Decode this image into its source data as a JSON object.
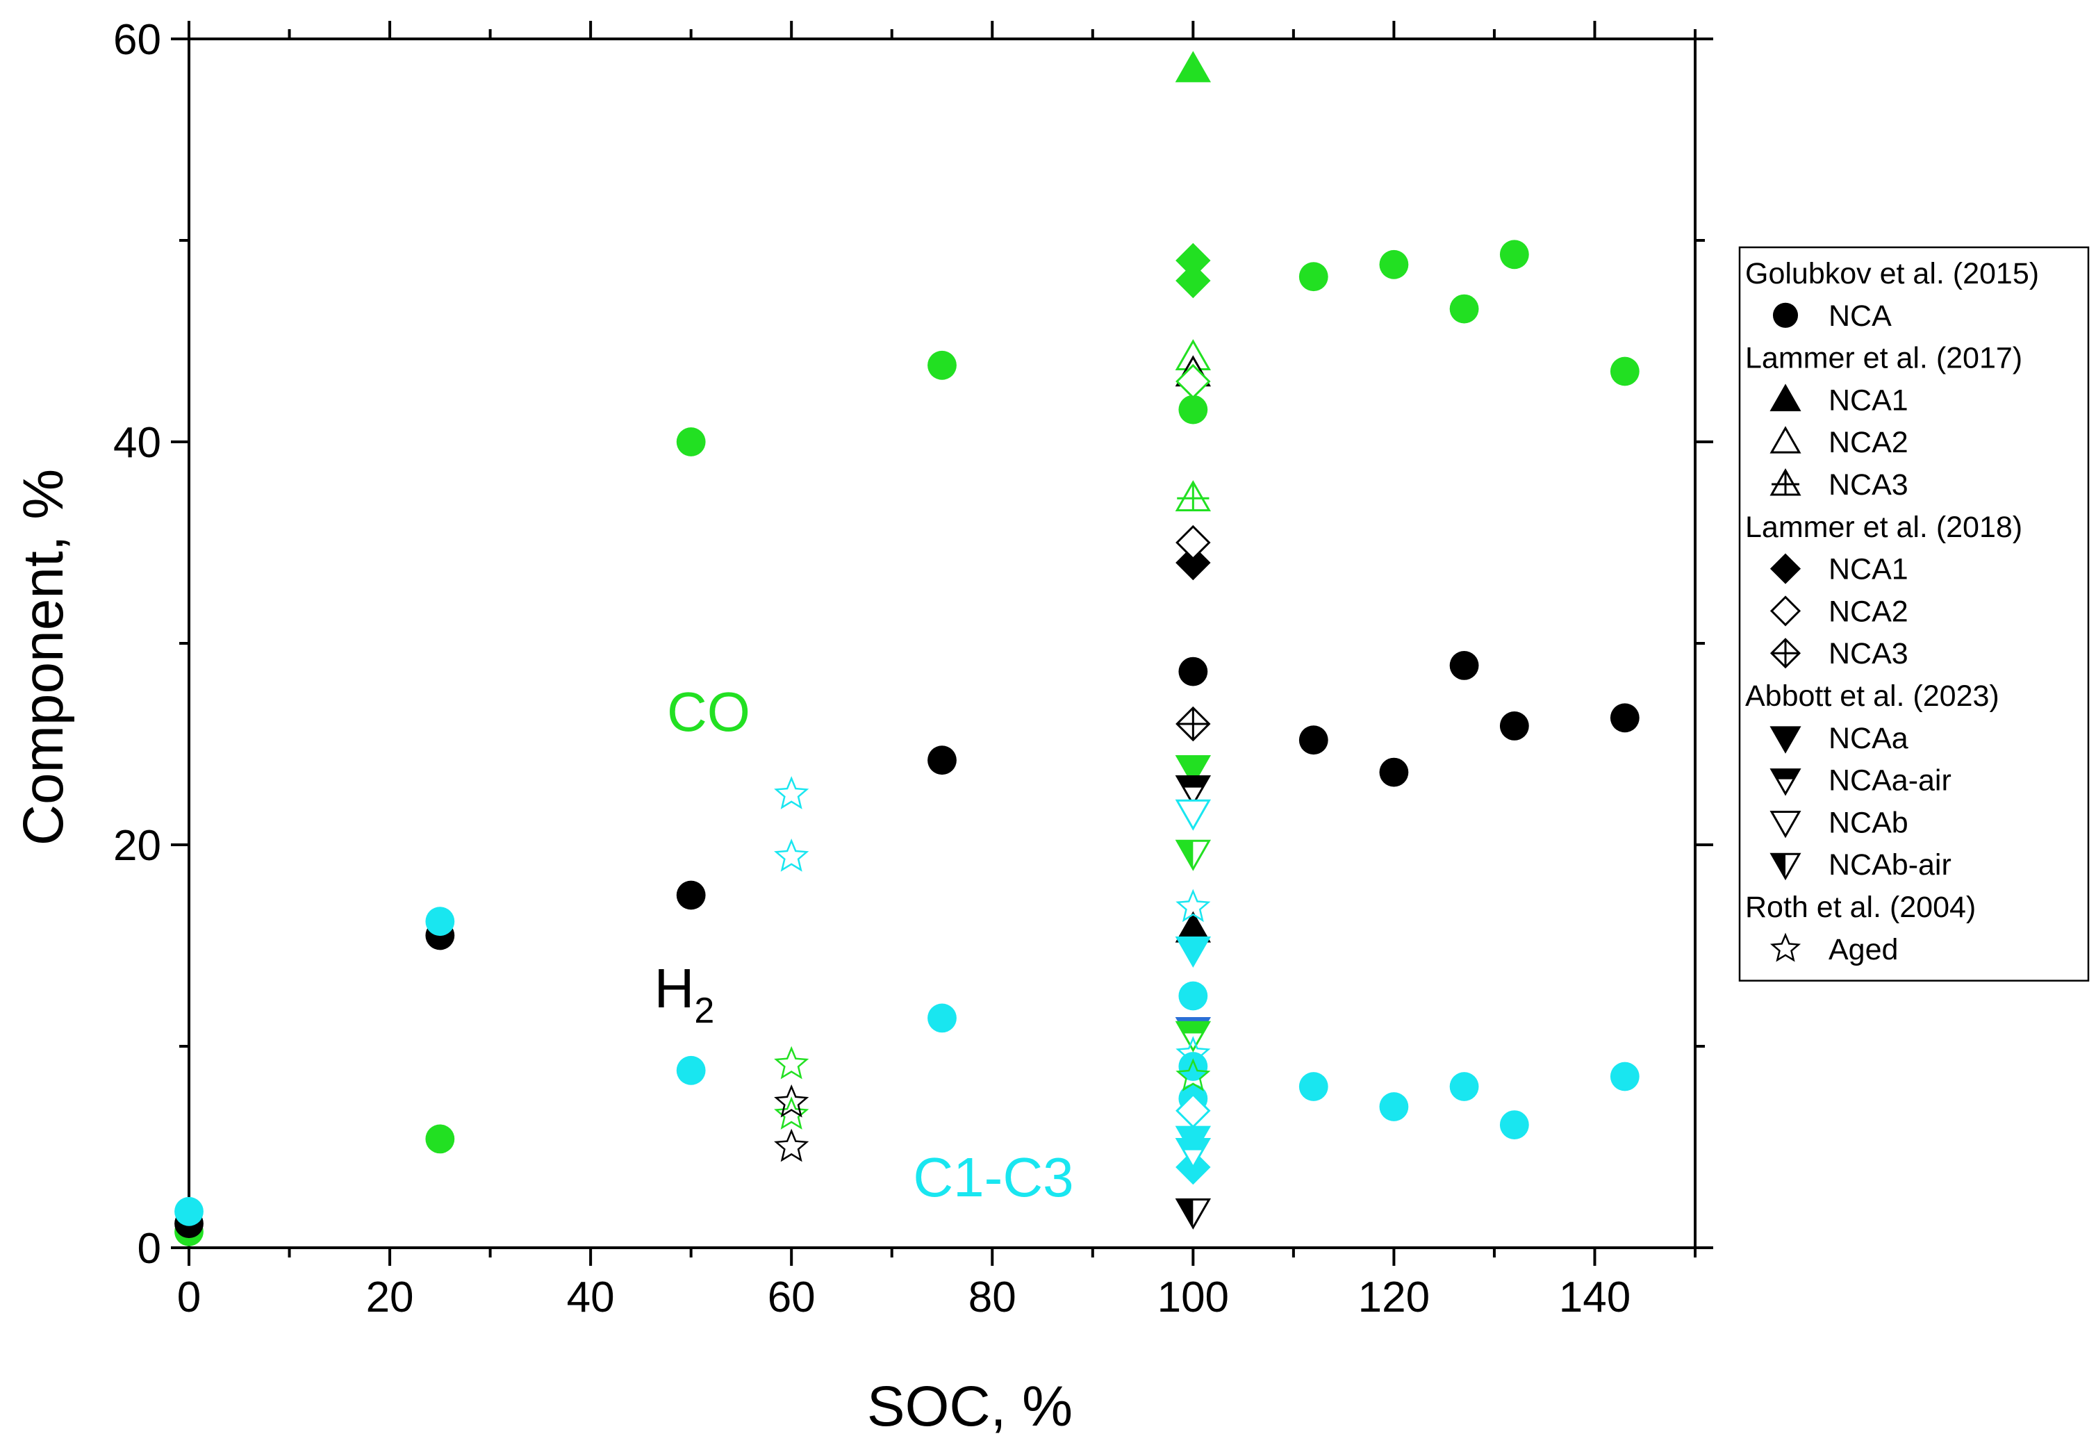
{
  "chart_data": {
    "type": "scatter",
    "title": "",
    "xlabel": "SOC, %",
    "ylabel": "Component, %",
    "xlim": [
      0,
      150
    ],
    "ylim": [
      0,
      60
    ],
    "xticks": [
      0,
      20,
      40,
      60,
      80,
      100,
      120,
      140
    ],
    "yticks": [
      0,
      20,
      40,
      60
    ],
    "colors": {
      "co": "#22e022",
      "h2": "#000000",
      "c1c3": "#19e6f0",
      "blue": "#2a6fd6"
    },
    "annotations": [
      {
        "id": "co",
        "text": "CO",
        "color": "#22e022"
      },
      {
        "id": "h2",
        "text": "H",
        "sub": "2",
        "color": "#000000"
      },
      {
        "id": "c1c3",
        "text": "C1-C3",
        "color": "#19e6f0"
      }
    ],
    "legend": {
      "placement": "right",
      "groups": [
        {
          "title": "Golubkov et al. (2015)",
          "entries": [
            {
              "label": "NCA",
              "marker": "circle"
            }
          ]
        },
        {
          "title": "Lammer et al. (2017)",
          "entries": [
            {
              "label": "NCA1",
              "marker": "tri-up-filled"
            },
            {
              "label": "NCA2",
              "marker": "tri-up-open"
            },
            {
              "label": "NCA3",
              "marker": "tri-up-cross"
            }
          ]
        },
        {
          "title": "Lammer et al. (2018)",
          "entries": [
            {
              "label": "NCA1",
              "marker": "diamond-filled"
            },
            {
              "label": "NCA2",
              "marker": "diamond-open"
            },
            {
              "label": "NCA3",
              "marker": "diamond-cross"
            }
          ]
        },
        {
          "title": "Abbott et al. (2023)",
          "entries": [
            {
              "label": "NCAa",
              "marker": "tri-down-filled"
            },
            {
              "label": "NCAa-air",
              "marker": "tri-down-half"
            },
            {
              "label": "NCAb",
              "marker": "tri-down-open"
            },
            {
              "label": "NCAb-air",
              "marker": "tri-down-half-v"
            }
          ]
        },
        {
          "title": "Roth et al. (2004)",
          "entries": [
            {
              "label": "Aged",
              "marker": "star-open"
            }
          ]
        }
      ]
    },
    "series": [
      {
        "name": "Golubkov NCA - CO",
        "marker": "circle",
        "color": "#22e022",
        "x": [
          0,
          25,
          50,
          75,
          100,
          112,
          120,
          127,
          132,
          143
        ],
        "y": [
          0.8,
          5.4,
          40,
          43.8,
          41.6,
          48.2,
          48.8,
          46.6,
          49.3,
          43.5
        ]
      },
      {
        "name": "Golubkov NCA - H2",
        "marker": "circle",
        "color": "#000000",
        "x": [
          0,
          25,
          50,
          75,
          100,
          112,
          120,
          127,
          132,
          143
        ],
        "y": [
          1.2,
          15.5,
          17.5,
          24.2,
          28.6,
          25.2,
          23.6,
          28.9,
          25.9,
          26.3
        ]
      },
      {
        "name": "Golubkov NCA - C1-C3",
        "marker": "circle",
        "color": "#19e6f0",
        "x": [
          0,
          25,
          50,
          75,
          100,
          112,
          120,
          127,
          132,
          143
        ],
        "y": [
          1.8,
          16.2,
          8.8,
          11.4,
          12.5,
          8.0,
          7.0,
          8.0,
          6.1,
          8.5
        ]
      },
      {
        "name": "Golubkov NCA - additional at 100",
        "marker": "circle",
        "color": "#19e6f0",
        "x": [
          100,
          100
        ],
        "y": [
          9.0,
          7.4
        ]
      },
      {
        "name": "Lammer 2017 NCA1 - CO",
        "marker": "tri-up-filled",
        "color": "#22e022",
        "x": [
          100
        ],
        "y": [
          58.5
        ]
      },
      {
        "name": "Lammer 2017 NCA1 - H2",
        "marker": "tri-up-filled",
        "color": "#000000",
        "x": [
          100
        ],
        "y": [
          15.8
        ]
      },
      {
        "name": "Lammer 2017 NCA2 - CO",
        "marker": "tri-up-open",
        "color": "#22e022",
        "x": [
          100
        ],
        "y": [
          44.2
        ]
      },
      {
        "name": "Lammer 2017 NCA3 - CO",
        "marker": "tri-up-cross",
        "color": "#22e022",
        "x": [
          100
        ],
        "y": [
          37.2
        ]
      },
      {
        "name": "Lammer 2017 NCA2 - H2",
        "marker": "tri-up-open",
        "color": "#000000",
        "x": [
          100
        ],
        "y": [
          43.4
        ]
      },
      {
        "name": "Lammer 2018 NCA1 - CO",
        "marker": "diamond-filled",
        "color": "#22e022",
        "x": [
          100,
          100
        ],
        "y": [
          49.0,
          48.0
        ]
      },
      {
        "name": "Lammer 2018 NCA1 - H2",
        "marker": "diamond-filled",
        "color": "#000000",
        "x": [
          100
        ],
        "y": [
          34.0
        ]
      },
      {
        "name": "Lammer 2018 NCA2 - CO",
        "marker": "diamond-open",
        "color": "#22e022",
        "x": [
          100
        ],
        "y": [
          43.0
        ]
      },
      {
        "name": "Lammer 2018 NCA2 - H2",
        "marker": "diamond-open",
        "color": "#000000",
        "x": [
          100
        ],
        "y": [
          35.0
        ]
      },
      {
        "name": "Lammer 2018 NCA3 - H2",
        "marker": "diamond-cross",
        "color": "#000000",
        "x": [
          100
        ],
        "y": [
          26.0
        ]
      },
      {
        "name": "Lammer 2018 NCA2 - C1-C3",
        "marker": "diamond-open",
        "color": "#19e6f0",
        "x": [
          100
        ],
        "y": [
          6.8
        ]
      },
      {
        "name": "Lammer 2018 NCA1 - C1-C3",
        "marker": "diamond-filled",
        "color": "#19e6f0",
        "x": [
          100
        ],
        "y": [
          4.0
        ]
      },
      {
        "name": "Abbott NCAa - CO",
        "marker": "tri-down-filled",
        "color": "#22e022",
        "x": [
          100
        ],
        "y": [
          23.8
        ]
      },
      {
        "name": "Abbott NCAa-air - H2",
        "marker": "tri-down-half",
        "color": "#000000",
        "x": [
          100
        ],
        "y": [
          22.8
        ]
      },
      {
        "name": "Abbott NCAb - C1-C3",
        "marker": "tri-down-open",
        "color": "#19e6f0",
        "x": [
          100
        ],
        "y": [
          21.6
        ]
      },
      {
        "name": "Abbott NCAb-air - CO",
        "marker": "tri-down-half-v",
        "color": "#22e022",
        "x": [
          100
        ],
        "y": [
          19.6
        ]
      },
      {
        "name": "Abbott NCAa - C1-C3",
        "marker": "tri-down-filled",
        "color": "#19e6f0",
        "x": [
          100
        ],
        "y": [
          14.8
        ]
      },
      {
        "name": "Abbott NCAa - C1-C3 (blue)",
        "marker": "tri-down-filled",
        "color": "#2a6fd6",
        "x": [
          100
        ],
        "y": [
          10.8
        ]
      },
      {
        "name": "Abbott NCAa-air - CO",
        "marker": "tri-down-half",
        "color": "#22e022",
        "x": [
          100
        ],
        "y": [
          10.6
        ]
      },
      {
        "name": "Abbott NCAb-air - C1-C3",
        "marker": "tri-down-half",
        "color": "#19e6f0",
        "x": [
          100,
          100
        ],
        "y": [
          5.4,
          4.8
        ]
      },
      {
        "name": "Abbott NCAb-air - H2",
        "marker": "tri-down-half-v",
        "color": "#000000",
        "x": [
          100
        ],
        "y": [
          1.8
        ]
      },
      {
        "name": "Roth Aged - C1-C3",
        "marker": "star-open",
        "color": "#19e6f0",
        "x": [
          60,
          60,
          100,
          100
        ],
        "y": [
          22.5,
          19.4,
          16.9,
          9.6
        ]
      },
      {
        "name": "Roth Aged - CO",
        "marker": "star-open",
        "color": "#22e022",
        "x": [
          60,
          60,
          100
        ],
        "y": [
          9.1,
          6.6,
          8.5
        ]
      },
      {
        "name": "Roth Aged - H2",
        "marker": "star-open",
        "color": "#000000",
        "x": [
          60,
          60
        ],
        "y": [
          7.2,
          5.0
        ]
      }
    ]
  }
}
